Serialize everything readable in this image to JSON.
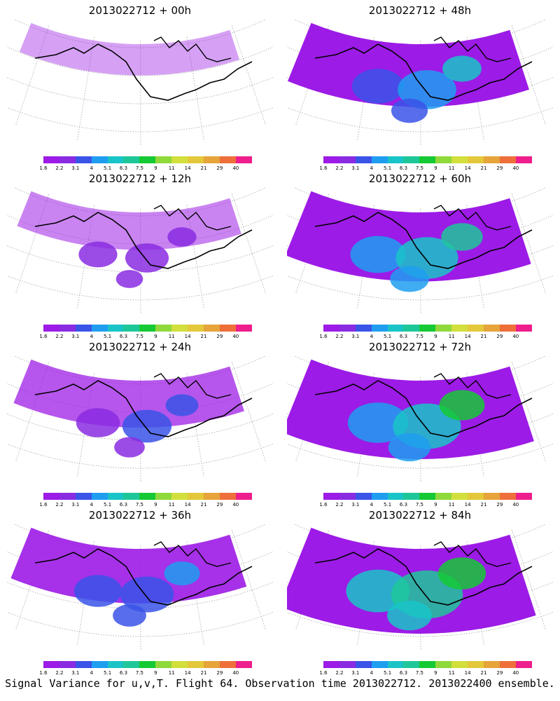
{
  "colorbar": {
    "colors": [
      "#9c1be6",
      "#8a2be2",
      "#3a54e8",
      "#1f9ef0",
      "#19c4c8",
      "#1ec79a",
      "#15c934",
      "#8fd93a",
      "#d2df3c",
      "#e3c83a",
      "#e6a43a",
      "#ee6f3a",
      "#ee1e8c"
    ],
    "ticks": [
      "1.6",
      "2.2",
      "3.1",
      "4",
      "5.1",
      "6.3",
      "7.5",
      "9",
      "11",
      "14",
      "21",
      "29",
      "40"
    ]
  },
  "panels": [
    {
      "title": "2013022712 + 00h",
      "intensity": 0.05
    },
    {
      "title": "2013022712 + 48h",
      "intensity": 0.55
    },
    {
      "title": "2013022712 + 12h",
      "intensity": 0.15
    },
    {
      "title": "2013022712 + 60h",
      "intensity": 0.65
    },
    {
      "title": "2013022712 + 24h",
      "intensity": 0.3
    },
    {
      "title": "2013022712 + 72h",
      "intensity": 0.8
    },
    {
      "title": "2013022712 + 36h",
      "intensity": 0.42
    },
    {
      "title": "2013022712 + 84h",
      "intensity": 0.9
    }
  ],
  "caption": "Signal Variance for u,v,T. Flight 64. Observation time 2013022712. 2013022400 ensemble."
}
